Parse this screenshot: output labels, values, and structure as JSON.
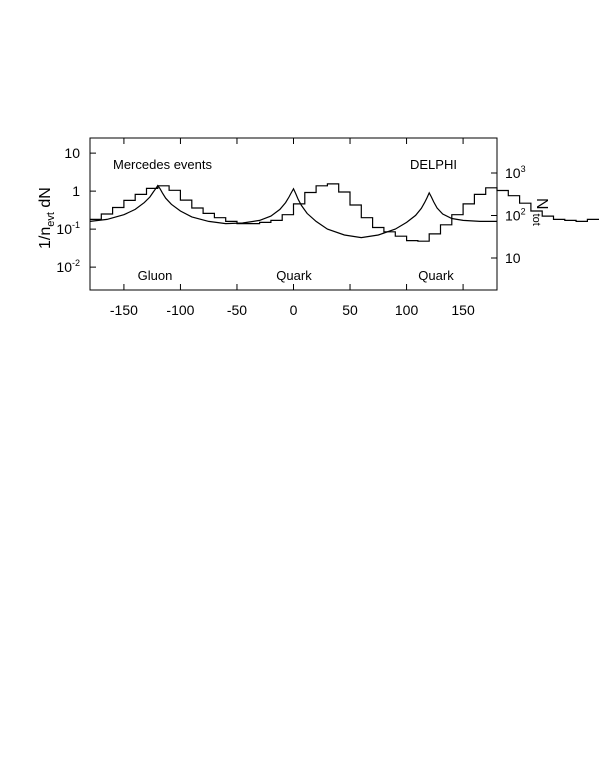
{
  "chart_data": {
    "type": "line",
    "title": "",
    "x_axis": {
      "range": [
        -180,
        180
      ],
      "ticks": [
        -150,
        -100,
        -50,
        0,
        50,
        100,
        150
      ],
      "tick_labels": [
        "-150",
        "-100",
        "-50",
        "0",
        "50",
        "100",
        "150"
      ]
    },
    "y_axis_left": {
      "label_main": "1/n",
      "label_sub": "evt",
      "label_tail": " dN",
      "scale": "log",
      "range": [
        0.0025,
        25
      ],
      "ticks": [
        0.01,
        0.1,
        1,
        10
      ],
      "tick_labels": [
        {
          "base": "10",
          "exp": "-2"
        },
        {
          "base": "10",
          "exp": "-1"
        },
        {
          "base": "1",
          "exp": ""
        },
        {
          "base": "10",
          "exp": ""
        }
      ]
    },
    "y_axis_right": {
      "label_main": "N",
      "label_sub": "tot",
      "scale": "log",
      "ticks": [
        {
          "value": 10,
          "base": "10",
          "exp": ""
        },
        {
          "value": 100,
          "base": "10",
          "exp": "2"
        },
        {
          "value": 1000,
          "base": "10",
          "exp": "3"
        }
      ]
    },
    "annotations": {
      "top_left": "Mercedes events",
      "top_right": "DELPHI",
      "bottom": [
        {
          "text": "Gluon",
          "x": -120
        },
        {
          "text": "Quark",
          "x": 0
        },
        {
          "text": "Quark",
          "x": 120
        }
      ]
    },
    "series": [
      {
        "style": "histogram",
        "bin_width": 10,
        "x_start": -180,
        "values": [
          0.18,
          0.25,
          0.37,
          0.57,
          0.82,
          1.18,
          1.38,
          1.05,
          0.58,
          0.36,
          0.26,
          0.2,
          0.16,
          0.14,
          0.14,
          0.15,
          0.17,
          0.24,
          0.46,
          0.92,
          1.38,
          1.55,
          0.95,
          0.43,
          0.2,
          0.11,
          0.085,
          0.065,
          0.05,
          0.048,
          0.075,
          0.13,
          0.24,
          0.46,
          0.82,
          1.22,
          1.04,
          0.76,
          0.48,
          0.3,
          0.22,
          0.18,
          0.17,
          0.16,
          0.18,
          0.18
        ]
      },
      {
        "style": "curve",
        "x": [
          -180,
          -165,
          -150,
          -140,
          -132,
          -127,
          -124,
          -122,
          -120,
          -118,
          -116,
          -113,
          -108,
          -100,
          -90,
          -75,
          -60,
          -45,
          -30,
          -20,
          -12,
          -7,
          -4,
          -2,
          0,
          2,
          4,
          7,
          12,
          20,
          30,
          45,
          60,
          75,
          90,
          100,
          108,
          113,
          116,
          118,
          120,
          122,
          124,
          127,
          132,
          140,
          150,
          165,
          180
        ],
        "y": [
          0.16,
          0.18,
          0.24,
          0.33,
          0.5,
          0.7,
          0.95,
          1.15,
          1.4,
          1.15,
          0.9,
          0.65,
          0.45,
          0.3,
          0.21,
          0.16,
          0.14,
          0.145,
          0.17,
          0.22,
          0.33,
          0.5,
          0.7,
          0.9,
          1.15,
          0.85,
          0.62,
          0.42,
          0.26,
          0.16,
          0.1,
          0.07,
          0.06,
          0.07,
          0.1,
          0.15,
          0.23,
          0.35,
          0.5,
          0.66,
          0.9,
          0.7,
          0.52,
          0.36,
          0.25,
          0.19,
          0.17,
          0.16,
          0.16
        ]
      }
    ]
  }
}
